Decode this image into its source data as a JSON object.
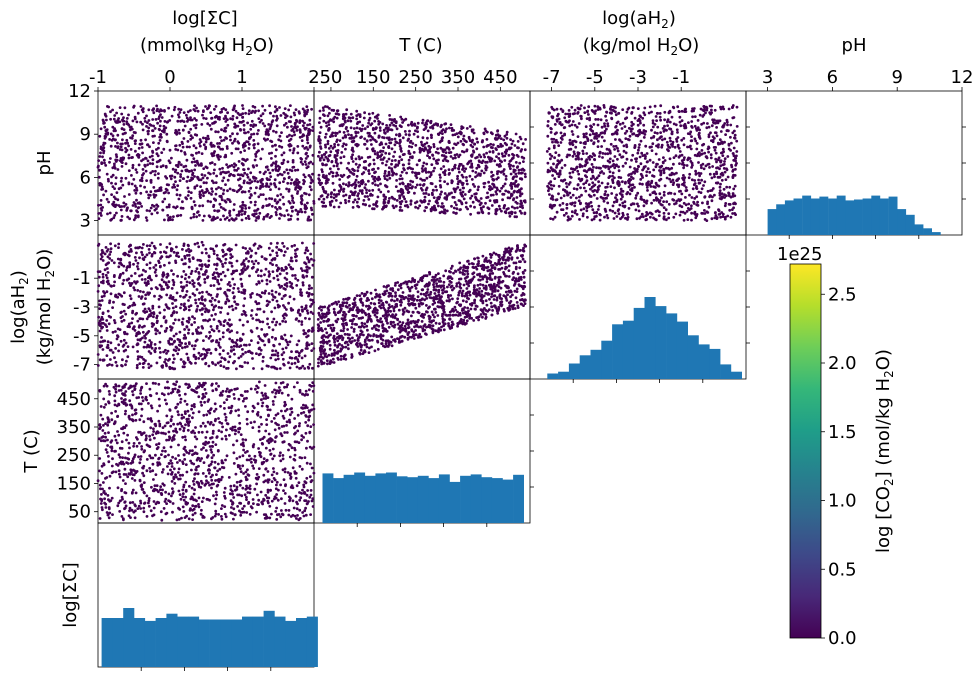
{
  "figure": {
    "variables": [
      {
        "key": "logC",
        "row_label": "log[ΣC]",
        "col_label_line1": "log[ΣC]",
        "col_label_line2": "(mmol\\kg H",
        "col_label_line2_sub": "2",
        "col_label_line2_tail": "O)",
        "range": [
          -1,
          2
        ],
        "ticks": [
          "-1",
          "0",
          "1",
          "2"
        ]
      },
      {
        "key": "T",
        "row_label": "T (C)",
        "col_label_line1": "",
        "col_label_line2": "T (C)",
        "range": [
          10,
          520
        ],
        "ticks": [
          "50",
          "150",
          "250",
          "350",
          "450"
        ]
      },
      {
        "key": "logaH2",
        "row_label_line1": "log(aH",
        "row_label_sub": "2",
        "row_label_tail": ")",
        "row_label_line2": "(kg/mol H",
        "row_label_line2_sub": "2",
        "row_label_line2_tail": "O)",
        "col_label_line1": "log(aH",
        "col_label_line1_sub": "2",
        "col_label_line1_tail": ")",
        "col_label_line2": "(kg/mol H",
        "col_label_line2_sub": "2",
        "col_label_line2_tail": "O)",
        "range": [
          -8,
          2
        ],
        "ticks": [
          "-7",
          "-5",
          "-3",
          "-1"
        ]
      },
      {
        "key": "pH",
        "row_label": "pH",
        "col_label_line2": "pH",
        "range": [
          2,
          12
        ],
        "ticks": [
          "3",
          "6",
          "9",
          "12"
        ]
      }
    ],
    "row_tick_labels": {
      "pH": [
        "12",
        "9",
        "6",
        "3"
      ],
      "logaH2": [
        "-1",
        "-3",
        "-5",
        "-7"
      ],
      "T": [
        "450",
        "350",
        "250",
        "150",
        "50"
      ]
    },
    "colorbar": {
      "label_prefix": "log [CO",
      "label_sub": "2",
      "label_suffix": "] (mol/kg H",
      "label_sub2": "2",
      "label_tail": "O)",
      "offset_text": "1e25",
      "ticks": [
        "0.0",
        "0.5",
        "1.0",
        "1.5",
        "2.0",
        "2.5"
      ],
      "range": [
        0,
        2.72
      ]
    },
    "colors": {
      "scatter": "#440154",
      "hist": "#1f77b4",
      "axis": "#000000"
    }
  },
  "chart_data": [
    {
      "type": "scatter",
      "panel": "pH vs log[ΣC]",
      "x_var": "log[ΣC]",
      "y_var": "pH",
      "xlim": [
        -1,
        2
      ],
      "ylim": [
        2,
        12
      ],
      "description_points": "approx 3000 points uniformly spread, x in [-1,2], y in [3,11]"
    },
    {
      "type": "scatter",
      "panel": "pH vs T (C)",
      "x_var": "T (C)",
      "y_var": "pH",
      "xlim": [
        10,
        520
      ],
      "ylim": [
        2,
        12
      ],
      "band_upper_start": 11,
      "band_upper_end": 9,
      "band_lower_start": 4.0,
      "band_lower_end": 3.2
    },
    {
      "type": "scatter",
      "panel": "pH vs log(aH2)",
      "x_var": "log(aH2)",
      "y_var": "pH",
      "xlim": [
        -8,
        2
      ],
      "ylim": [
        2,
        12
      ]
    },
    {
      "type": "bar",
      "panel": "pH histogram",
      "x": [
        3.0,
        3.4,
        3.8,
        4.2,
        4.6,
        5.0,
        5.4,
        5.8,
        6.2,
        6.6,
        7.0,
        7.4,
        7.8,
        8.2,
        8.6,
        9.0,
        9.4,
        9.8,
        10.2,
        10.6
      ],
      "values": [
        27,
        32,
        36,
        38,
        41,
        38,
        40,
        38,
        41,
        36,
        37,
        38,
        41,
        38,
        40,
        27,
        21,
        11,
        7,
        3
      ]
    },
    {
      "type": "scatter",
      "panel": "log(aH2) vs log[ΣC]",
      "x_var": "log[ΣC]",
      "y_var": "log(aH2)",
      "xlim": [
        -1,
        2
      ],
      "ylim": [
        -8,
        2
      ]
    },
    {
      "type": "scatter",
      "panel": "log(aH2) vs T (C)",
      "x_var": "T (C)",
      "y_var": "log(aH2)",
      "xlim": [
        10,
        520
      ],
      "ylim": [
        -8,
        2
      ],
      "band_upper_start": -3.0,
      "band_upper_end": 1.5,
      "band_lower_start": -7.2,
      "band_lower_end": -3.0
    },
    {
      "type": "bar",
      "panel": "log(aH2) histogram",
      "x": [
        -7.2,
        -6.7,
        -6.2,
        -5.7,
        -5.2,
        -4.7,
        -4.2,
        -3.7,
        -3.2,
        -2.7,
        -2.2,
        -1.7,
        -1.2,
        -0.7,
        -0.2,
        0.3,
        0.8,
        1.3
      ],
      "values": [
        6,
        8,
        17,
        26,
        32,
        42,
        60,
        64,
        78,
        90,
        80,
        72,
        63,
        48,
        38,
        33,
        16,
        8
      ]
    },
    {
      "type": "scatter",
      "panel": "T (C) vs log[ΣC]",
      "x_var": "log[ΣC]",
      "y_var": "T (C)",
      "xlim": [
        -1,
        2
      ],
      "ylim": [
        10,
        520
      ]
    },
    {
      "type": "bar",
      "panel": "T (C) histogram",
      "x": [
        30,
        55,
        80,
        105,
        130,
        155,
        180,
        205,
        230,
        255,
        280,
        305,
        330,
        355,
        380,
        405,
        430,
        455,
        480
      ],
      "values": [
        105,
        95,
        102,
        107,
        100,
        105,
        107,
        99,
        97,
        100,
        95,
        103,
        87,
        100,
        103,
        97,
        95,
        92,
        102
      ]
    },
    {
      "type": "bar",
      "panel": "log[ΣC] histogram",
      "x": [
        -0.95,
        -0.8,
        -0.65,
        -0.5,
        -0.35,
        -0.2,
        -0.05,
        0.1,
        0.25,
        0.4,
        0.55,
        0.7,
        0.85,
        1.0,
        1.15,
        1.3,
        1.45,
        1.6,
        1.75,
        1.9
      ],
      "values": [
        34,
        34,
        41,
        34,
        32,
        34,
        37,
        35,
        35,
        33,
        33,
        33,
        33,
        35,
        35,
        39,
        35,
        32,
        34,
        35
      ]
    }
  ]
}
